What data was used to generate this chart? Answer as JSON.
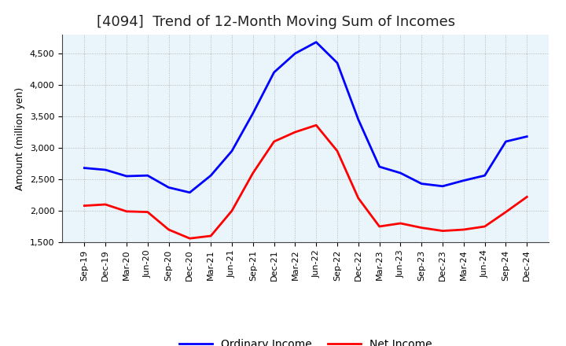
{
  "title": "[4094]  Trend of 12-Month Moving Sum of Incomes",
  "ylabel": "Amount (million yen)",
  "xlabels": [
    "Sep-19",
    "Dec-19",
    "Mar-20",
    "Jun-20",
    "Sep-20",
    "Dec-20",
    "Mar-21",
    "Jun-21",
    "Sep-21",
    "Dec-21",
    "Mar-22",
    "Jun-22",
    "Sep-22",
    "Dec-22",
    "Mar-23",
    "Jun-23",
    "Sep-23",
    "Dec-23",
    "Mar-24",
    "Jun-24",
    "Sep-24",
    "Dec-24"
  ],
  "ordinary_income": [
    2680,
    2650,
    2550,
    2560,
    2370,
    2290,
    2560,
    2950,
    3550,
    4200,
    4500,
    4680,
    4350,
    3450,
    2700,
    2600,
    2430,
    2390,
    2480,
    2560,
    3100,
    3180
  ],
  "net_income": [
    2080,
    2100,
    1990,
    1980,
    1700,
    1560,
    1600,
    2000,
    2600,
    3100,
    3250,
    3360,
    2950,
    2200,
    1750,
    1800,
    1730,
    1680,
    1700,
    1750,
    1980,
    2220
  ],
  "ordinary_income_color": "#0000FF",
  "net_income_color": "#FF0000",
  "ylim_min": 1500,
  "ylim_max": 4800,
  "yticks": [
    1500,
    2000,
    2500,
    3000,
    3500,
    4000,
    4500
  ],
  "background_color": "#FFFFFF",
  "plot_bg_color": "#EAF4FB",
  "grid_color": "#999999",
  "title_fontsize": 13,
  "axis_fontsize": 9,
  "tick_fontsize": 8,
  "legend_fontsize": 10,
  "line_width": 2.0
}
